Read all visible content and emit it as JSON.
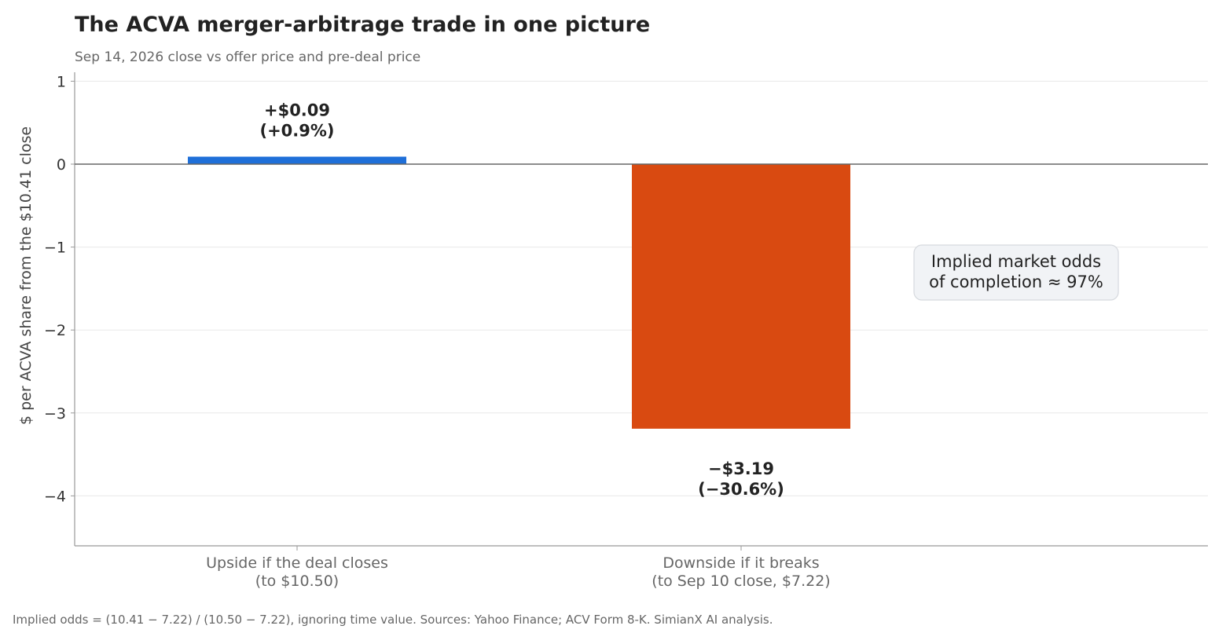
{
  "chart_data": {
    "type": "bar",
    "title": "The ACVA merger-arbitrage trade in one picture",
    "subtitle": "Sep 14, 2026 close vs offer price and pre-deal price",
    "ylabel": "$ per ACVA share from the $10.41 close",
    "ylim": [
      -4.6,
      1.1
    ],
    "yticks": [
      1,
      0,
      -1,
      -2,
      -3,
      -4
    ],
    "ytick_labels": [
      "1",
      "0",
      "−1",
      "−2",
      "−3",
      "−4"
    ],
    "categories": [
      [
        "Upside if the deal closes",
        "(to $10.50)"
      ],
      [
        "Downside if it breaks",
        "(to Sep 10 close, $7.22)"
      ]
    ],
    "values": [
      0.09,
      -3.19
    ],
    "data_labels": [
      [
        "+$0.09",
        "(+0.9%)"
      ],
      [
        "−$3.19",
        "(−30.6%)"
      ]
    ],
    "colors": [
      "#1f6fd8",
      "#d94a11"
    ],
    "grid": true,
    "annotation": [
      "Implied market odds",
      "of completion ≈ 97%"
    ],
    "footnote": "Implied odds = (10.41 − 7.22) / (10.50 − 7.22), ignoring time value. Sources: Yahoo Finance; ACV Form 8-K. SimianX AI analysis."
  }
}
